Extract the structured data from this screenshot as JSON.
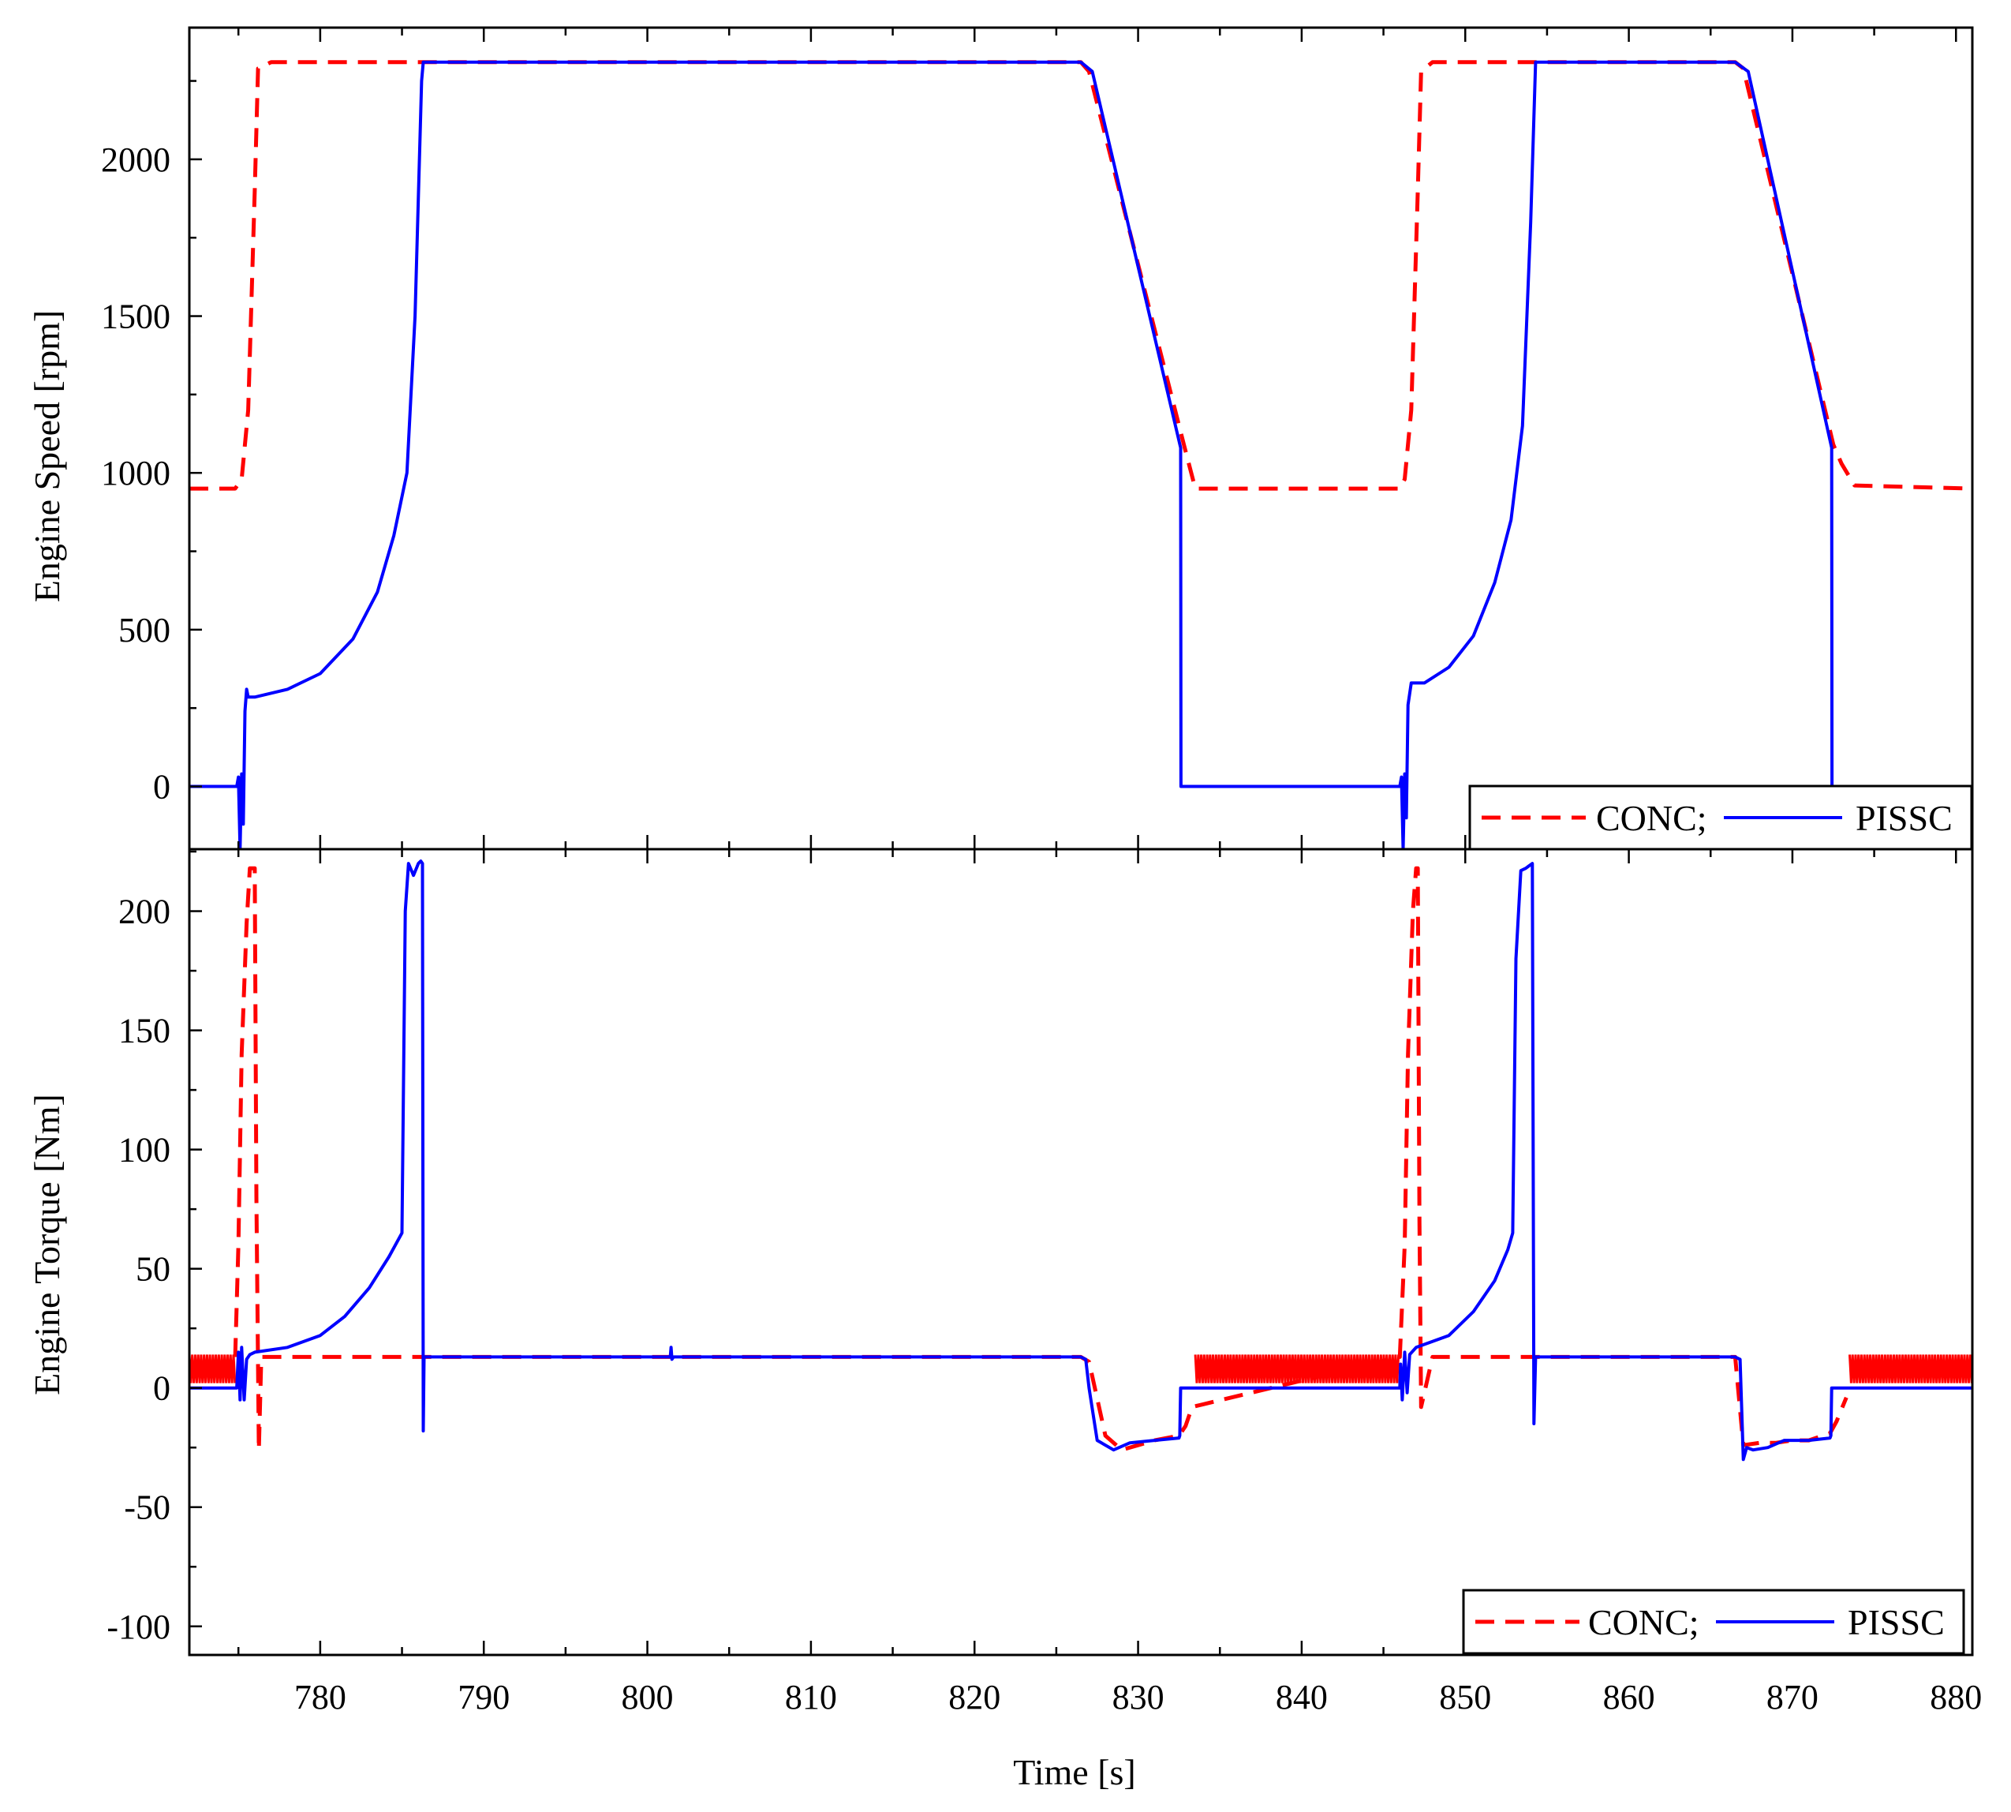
{
  "chart_data": [
    {
      "type": "line",
      "title": "",
      "xlabel": "",
      "ylabel": "Engine Speed [rpm]",
      "xlim": [
        772,
        881
      ],
      "ylim": [
        -200,
        2420
      ],
      "yticks": [
        0,
        500,
        1000,
        1500,
        2000
      ],
      "grid": false,
      "legend_position": "bottom-right",
      "legend": [
        "CONC;",
        "PISSC"
      ],
      "series": [
        {
          "name": "CONC;",
          "color": "#ff0000",
          "style": "dashed",
          "x": [
            772,
            774.8,
            775.2,
            775.6,
            776.0,
            776.2,
            777,
            786,
            826.5,
            827,
            832.8,
            833.5,
            834,
            840,
            846,
            846.3,
            846.7,
            847.1,
            847.3,
            848,
            854,
            866.5,
            867,
            872.5,
            873,
            873.8,
            881
          ],
          "values": [
            950,
            950,
            980,
            1200,
            1900,
            2290,
            2310,
            2310,
            2310,
            2280,
            1090,
            950,
            950,
            950,
            950,
            980,
            1200,
            1900,
            2280,
            2310,
            2310,
            2310,
            2290,
            1090,
            1030,
            960,
            950
          ]
        },
        {
          "name": "PISSC",
          "color": "#0000ff",
          "style": "solid",
          "x": [
            772,
            774.9,
            775.0,
            775.1,
            775.2,
            775.3,
            775.4,
            775.5,
            775.6,
            776,
            778,
            780,
            782,
            783.5,
            784.5,
            785.3,
            785.8,
            786.2,
            786.3,
            826.5,
            827.2,
            832.6,
            832.62,
            832.7,
            846.0,
            846.1,
            846.2,
            846.3,
            846.4,
            846.5,
            846.7,
            847.5,
            849,
            850.5,
            851.8,
            852.8,
            853.5,
            854.0,
            854.3,
            866.5,
            867.3,
            872.4,
            872.42,
            872.5,
            881
          ],
          "values": [
            0,
            0,
            30,
            -200,
            40,
            -120,
            240,
            310,
            285,
            285,
            310,
            360,
            470,
            620,
            800,
            1000,
            1500,
            2250,
            2310,
            2310,
            2280,
            1080,
            0,
            0,
            0,
            30,
            -200,
            40,
            -100,
            260,
            330,
            330,
            380,
            480,
            650,
            850,
            1150,
            1800,
            2310,
            2310,
            2280,
            1080,
            0,
            0,
            0
          ]
        }
      ]
    },
    {
      "type": "line",
      "title": "",
      "xlabel": "Time [s]",
      "ylabel": "Engine Torque [Nm]",
      "xlim": [
        772,
        881
      ],
      "ylim": [
        -112,
        226
      ],
      "yticks": [
        -100,
        -50,
        0,
        50,
        100,
        150,
        200
      ],
      "xticks": [
        780,
        790,
        800,
        810,
        820,
        830,
        840,
        850,
        860,
        870,
        880
      ],
      "grid": false,
      "legend_position": "bottom-right",
      "legend": [
        "CONC;",
        "PISSC"
      ],
      "series": [
        {
          "name": "CONC;",
          "color": "#ff0000",
          "style": "dashed",
          "oscillation_bands": [
            {
              "x_start": 772,
              "x_end": 774.8,
              "low": 2,
              "high": 14
            },
            {
              "x_start": 833.5,
              "x_end": 846.0,
              "low": 2,
              "high": 14
            },
            {
              "x_start": 873.5,
              "x_end": 881,
              "low": 2,
              "high": 14
            }
          ],
          "x": [
            774.8,
            775.0,
            775.2,
            775.5,
            775.7,
            775.9,
            776.0,
            776.1,
            776.25,
            776.4,
            777,
            826.5,
            827,
            828,
            829,
            830,
            831,
            832.5,
            832.9,
            833.3,
            846.0,
            846.3,
            846.5,
            846.8,
            847.0,
            847.1,
            847.2,
            847.3,
            848,
            866.5,
            867,
            868,
            869,
            870,
            871,
            872.3,
            872.7,
            873.3
          ],
          "values": [
            13,
            60,
            140,
            195,
            218,
            218,
            218,
            80,
            -26,
            13,
            13,
            13,
            11,
            -20,
            -26,
            -24,
            -22,
            -20,
            -16,
            -8,
            13,
            60,
            140,
            200,
            218,
            218,
            70,
            -8,
            13,
            13,
            -24,
            -23,
            -23,
            -22,
            -22,
            -19,
            -14,
            -4
          ]
        },
        {
          "name": "PISSC",
          "color": "#0000ff",
          "style": "solid",
          "x": [
            772,
            774.9,
            775.0,
            775.1,
            775.2,
            775.35,
            775.5,
            775.7,
            776,
            778,
            780,
            781.5,
            783,
            784.2,
            785.0,
            785.2,
            785.4,
            785.7,
            786.0,
            786.15,
            786.25,
            786.3,
            786.35,
            786.5,
            801.4,
            801.45,
            801.5,
            801.6,
            826.5,
            826.8,
            827.0,
            827.5,
            828.5,
            829.5,
            831,
            832.5,
            832.55,
            832.6,
            846.0,
            846.05,
            846.15,
            846.3,
            846.45,
            846.6,
            847,
            849,
            850.5,
            851.8,
            852.6,
            852.9,
            853.1,
            853.4,
            853.7,
            853.9,
            854.1,
            854.2,
            854.3,
            854.4,
            866.5,
            866.8,
            867.0,
            867.2,
            867.6,
            868.5,
            869.5,
            871,
            872.3,
            872.35,
            872.4,
            881
          ],
          "values": [
            0,
            0,
            15,
            -5,
            17,
            -5,
            12,
            14,
            15,
            17,
            22,
            30,
            42,
            55,
            65,
            200,
            220,
            215,
            220,
            221,
            220,
            -18,
            13,
            13,
            13,
            17,
            12,
            13,
            13,
            12,
            0,
            -22,
            -26,
            -23,
            -22,
            -21,
            -20,
            0,
            0,
            10,
            -5,
            15,
            -2,
            14,
            17,
            22,
            32,
            45,
            58,
            65,
            180,
            217,
            218,
            219,
            220,
            -15,
            13,
            13,
            13,
            12,
            -30,
            -25,
            -26,
            -25,
            -22,
            -22,
            -21,
            -20,
            0,
            0
          ]
        }
      ]
    }
  ]
}
